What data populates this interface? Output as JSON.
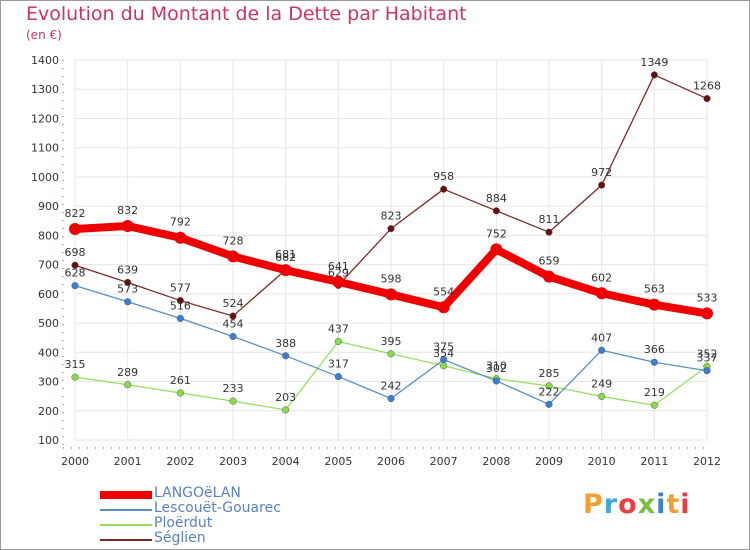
{
  "title": "Evolution du Montant de la Dette par Habitant",
  "subtitle": "(en €)",
  "logo": {
    "text": "Proxiti",
    "colors": [
      "#f0a030",
      "#3fa8e0",
      "#e84040",
      "#7fbf3f",
      "#3f7fd0",
      "#f0a030",
      "#e84040"
    ]
  },
  "chart_data": {
    "type": "line",
    "x": [
      "2000",
      "2001",
      "2002",
      "2003",
      "2004",
      "2005",
      "2006",
      "2007",
      "2008",
      "2009",
      "2010",
      "2011",
      "2012"
    ],
    "yticks": [
      100,
      200,
      300,
      400,
      500,
      600,
      700,
      800,
      900,
      1000,
      1100,
      1200,
      1300,
      1400
    ],
    "ylim": [
      100,
      1400
    ],
    "grid": true,
    "legend_position": "bottom-left",
    "series": [
      {
        "name": "LANGOëLAN",
        "color": "#ee0000",
        "values": [
          822,
          832,
          792,
          728,
          681,
          641,
          598,
          554,
          752,
          659,
          602,
          563,
          533
        ],
        "labels": [
          "822",
          "832",
          "792",
          "728",
          "681",
          "641",
          "598",
          "554",
          "752",
          "659",
          "602",
          "563",
          "533"
        ]
      },
      {
        "name": "Lescouët-Gouarec",
        "color": "#5b8fc4",
        "values": [
          628,
          573,
          516,
          454,
          388,
          317,
          242,
          375,
          302,
          222,
          407,
          366,
          337
        ],
        "labels": [
          "628",
          "573",
          "516",
          "454",
          "388",
          "317",
          "242",
          "375",
          "302",
          "222",
          "407",
          "366",
          "337"
        ]
      },
      {
        "name": "Ploërdut",
        "color": "#99dd66",
        "values": [
          315,
          289,
          261,
          233,
          203,
          437,
          395,
          354,
          310,
          285,
          249,
          219,
          352
        ],
        "labels": [
          "315",
          "289",
          "261",
          "233",
          "203",
          "437",
          "395",
          "354",
          "310",
          "285",
          "249",
          "219",
          "352"
        ]
      },
      {
        "name": "Séglien",
        "color": "#7a2a2a",
        "values": [
          698,
          639,
          577,
          524,
          682,
          629,
          823,
          958,
          884,
          811,
          972,
          1349,
          1268
        ],
        "labels": [
          "698",
          "639",
          "577",
          "524",
          "682",
          "629",
          "823",
          "958",
          "884",
          "811",
          "972",
          "1349",
          "1268"
        ]
      }
    ]
  }
}
